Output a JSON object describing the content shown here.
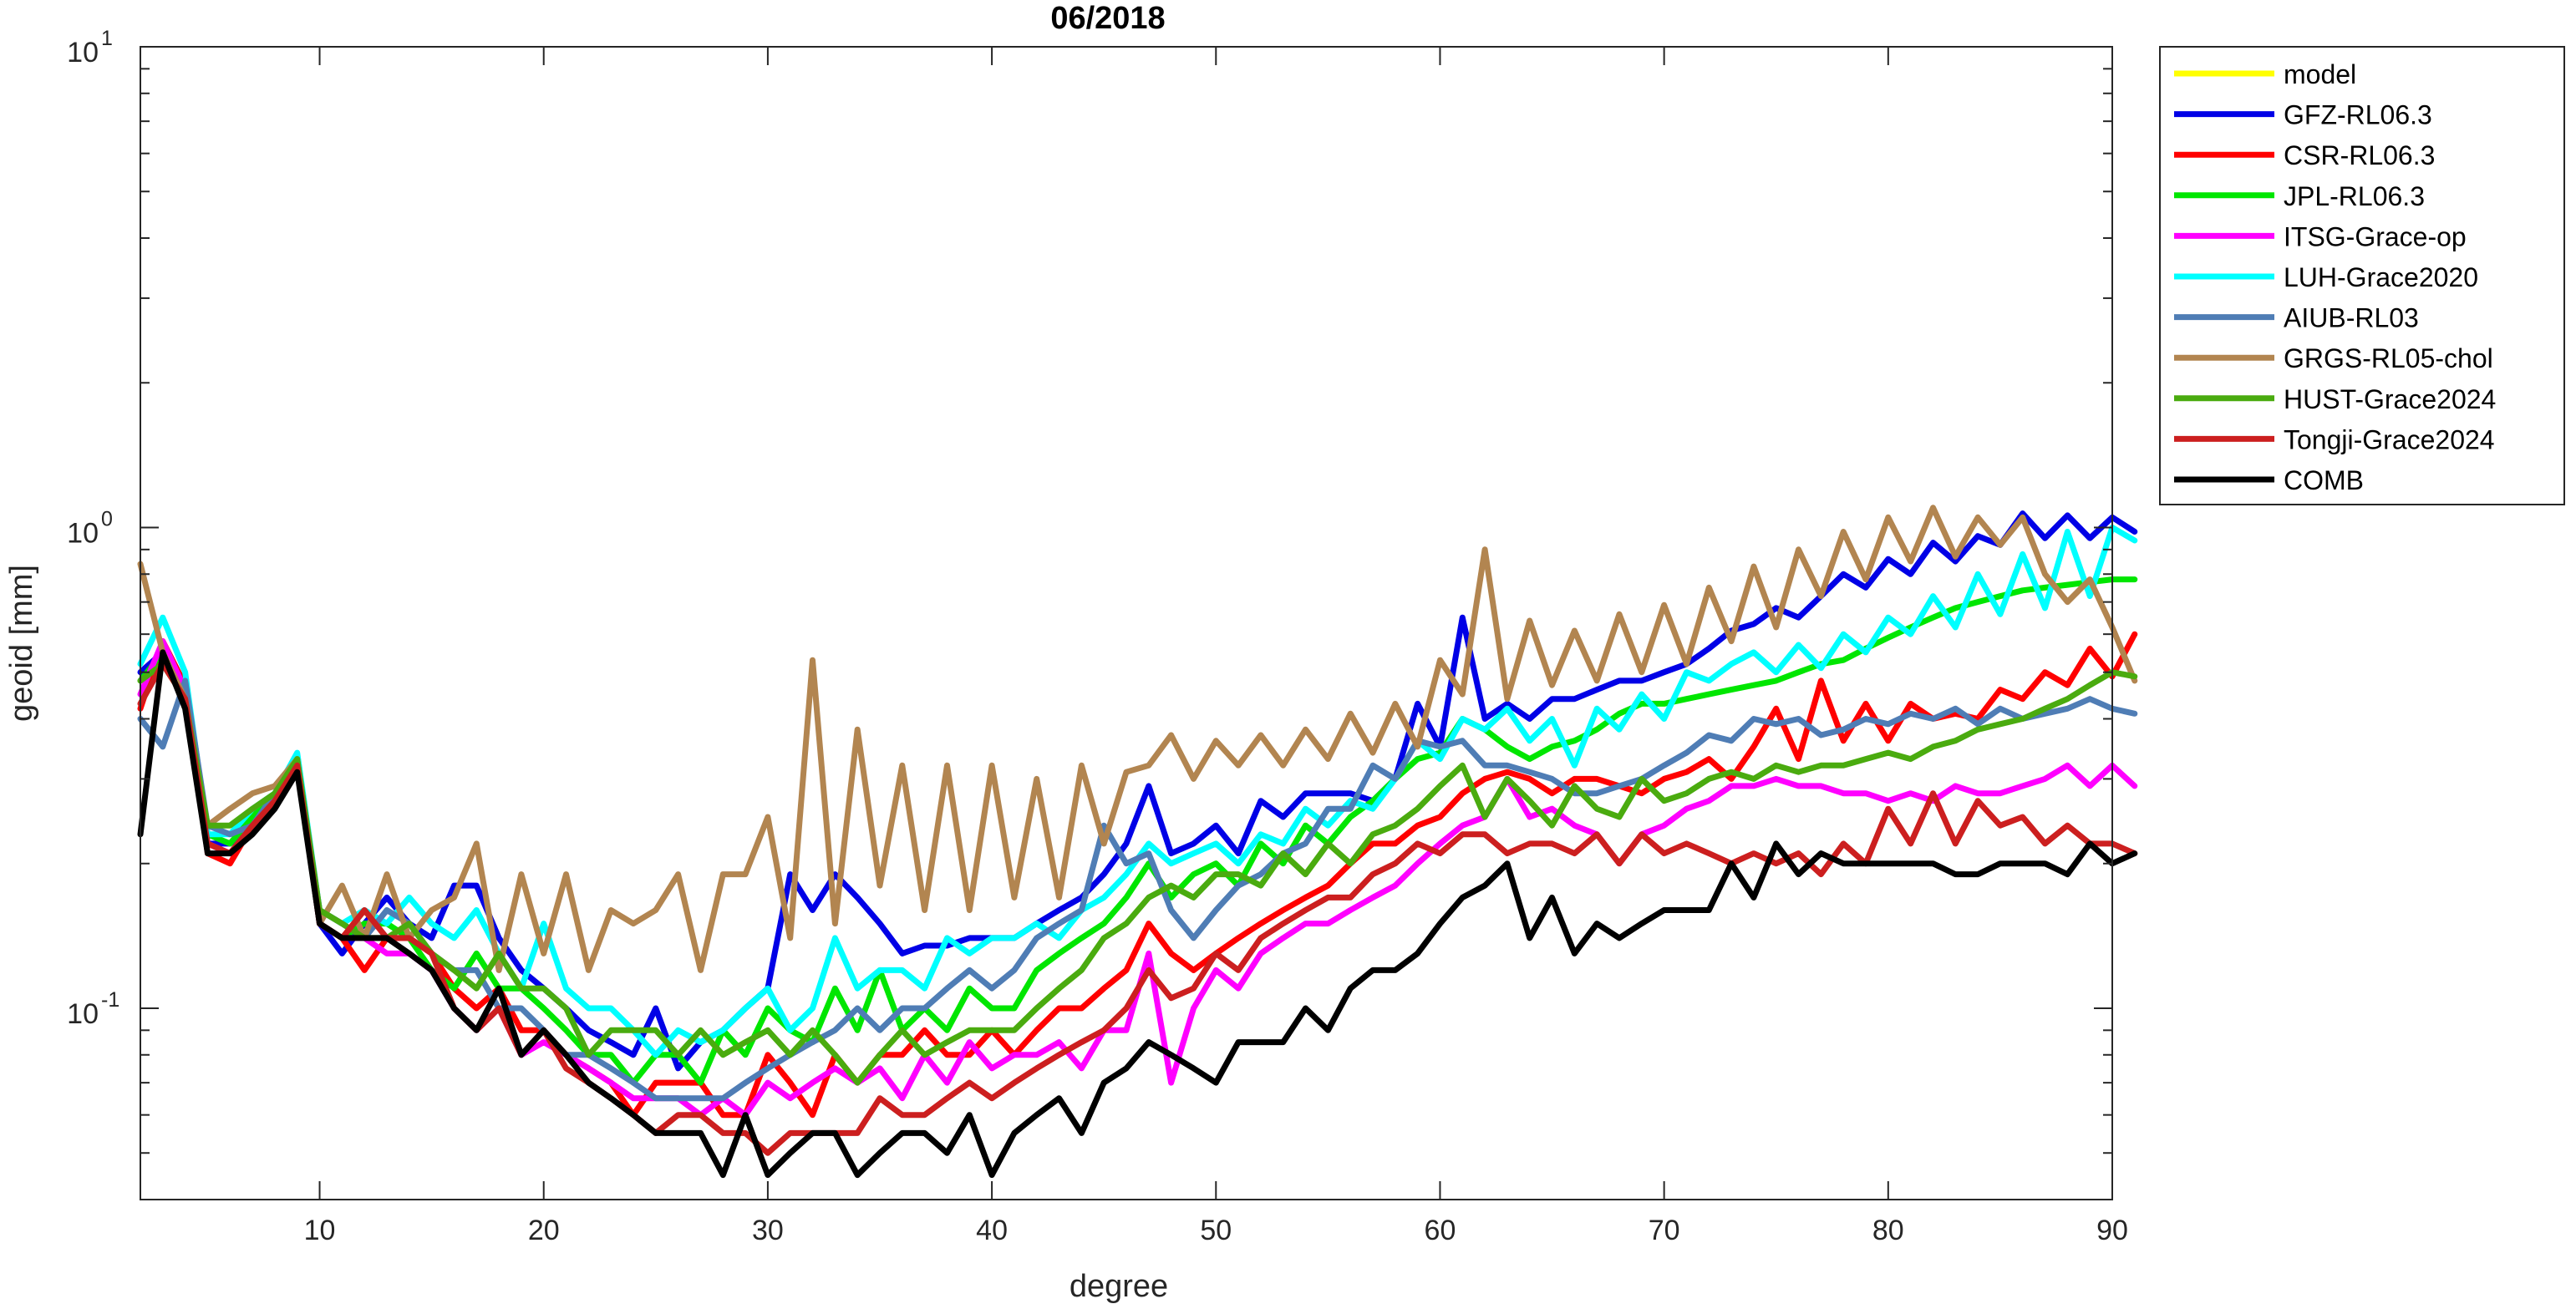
{
  "chart_data": {
    "type": "line",
    "title": "06/2018",
    "xlabel": "degree",
    "ylabel": "geoid [mm]",
    "xlim": [
      2,
      90
    ],
    "ylim": [
      0.04,
      10
    ],
    "yscale": "log",
    "grid": false,
    "legend_position": "outside-right-top",
    "xticks": [
      10,
      20,
      30,
      40,
      50,
      60,
      70,
      80,
      90
    ],
    "xtick_labels": [
      "10",
      "20",
      "30",
      "40",
      "50",
      "60",
      "70",
      "80",
      "90"
    ],
    "yticks": [
      {
        "value": 0.1,
        "base": "10",
        "exp": "-1"
      },
      {
        "value": 1,
        "base": "10",
        "exp": "0"
      },
      {
        "value": 10,
        "base": "10",
        "exp": "1"
      }
    ],
    "x_start": 2,
    "series": [
      {
        "name": "model",
        "color": "#ffff00",
        "values": []
      },
      {
        "name": "GFZ-RL06.3",
        "color": "#0000e6",
        "values": [
          0.5,
          0.55,
          0.45,
          0.22,
          0.22,
          0.24,
          0.27,
          0.32,
          0.15,
          0.13,
          0.15,
          0.17,
          0.15,
          0.14,
          0.18,
          0.18,
          0.14,
          0.12,
          0.11,
          0.1,
          0.09,
          0.085,
          0.08,
          0.1,
          0.075,
          0.085,
          0.09,
          0.1,
          0.11,
          0.19,
          0.16,
          0.19,
          0.17,
          0.15,
          0.13,
          0.135,
          0.135,
          0.14,
          0.14,
          0.14,
          0.15,
          0.16,
          0.17,
          0.19,
          0.22,
          0.29,
          0.21,
          0.22,
          0.24,
          0.21,
          0.27,
          0.25,
          0.28,
          0.28,
          0.28,
          0.27,
          0.3,
          0.43,
          0.35,
          0.65,
          0.4,
          0.43,
          0.4,
          0.44,
          0.44,
          0.46,
          0.48,
          0.48,
          0.5,
          0.52,
          0.56,
          0.61,
          0.63,
          0.68,
          0.65,
          0.72,
          0.8,
          0.75,
          0.86,
          0.8,
          0.93,
          0.85,
          0.96,
          0.92,
          1.07,
          0.95,
          1.06,
          0.95,
          1.05,
          0.98
        ]
      },
      {
        "name": "CSR-RL06.3",
        "color": "#ff0000",
        "values": [
          0.42,
          0.58,
          0.47,
          0.21,
          0.2,
          0.24,
          0.27,
          0.32,
          0.15,
          0.14,
          0.12,
          0.14,
          0.14,
          0.13,
          0.11,
          0.1,
          0.11,
          0.09,
          0.09,
          0.08,
          0.075,
          0.07,
          0.06,
          0.07,
          0.07,
          0.07,
          0.06,
          0.06,
          0.08,
          0.07,
          0.06,
          0.08,
          0.07,
          0.08,
          0.08,
          0.09,
          0.08,
          0.08,
          0.09,
          0.08,
          0.09,
          0.1,
          0.1,
          0.11,
          0.12,
          0.15,
          0.13,
          0.12,
          0.13,
          0.14,
          0.15,
          0.16,
          0.17,
          0.18,
          0.2,
          0.22,
          0.22,
          0.24,
          0.25,
          0.28,
          0.3,
          0.31,
          0.3,
          0.28,
          0.3,
          0.3,
          0.29,
          0.28,
          0.3,
          0.31,
          0.33,
          0.3,
          0.35,
          0.42,
          0.33,
          0.48,
          0.36,
          0.43,
          0.36,
          0.43,
          0.4,
          0.41,
          0.4,
          0.46,
          0.44,
          0.5,
          0.47,
          0.56,
          0.49,
          0.6
        ]
      },
      {
        "name": "JPL-RL06.3",
        "color": "#00e600",
        "values": [
          0.48,
          0.55,
          0.45,
          0.23,
          0.22,
          0.25,
          0.28,
          0.32,
          0.15,
          0.14,
          0.15,
          0.15,
          0.14,
          0.12,
          0.11,
          0.13,
          0.11,
          0.11,
          0.1,
          0.09,
          0.08,
          0.08,
          0.07,
          0.08,
          0.08,
          0.07,
          0.09,
          0.08,
          0.1,
          0.09,
          0.085,
          0.11,
          0.09,
          0.12,
          0.09,
          0.1,
          0.09,
          0.11,
          0.1,
          0.1,
          0.12,
          0.13,
          0.14,
          0.15,
          0.17,
          0.2,
          0.17,
          0.19,
          0.2,
          0.18,
          0.22,
          0.2,
          0.24,
          0.22,
          0.25,
          0.27,
          0.3,
          0.33,
          0.34,
          0.4,
          0.38,
          0.35,
          0.33,
          0.35,
          0.36,
          0.38,
          0.41,
          0.43,
          0.43,
          0.44,
          0.45,
          0.46,
          0.47,
          0.48,
          0.5,
          0.52,
          0.53,
          0.56,
          0.59,
          0.62,
          0.65,
          0.68,
          0.7,
          0.72,
          0.74,
          0.75,
          0.76,
          0.77,
          0.78,
          0.78
        ]
      },
      {
        "name": "ITSG-Grace-op",
        "color": "#ff00ff",
        "values": [
          0.45,
          0.58,
          0.46,
          0.22,
          0.21,
          0.24,
          0.27,
          0.32,
          0.15,
          0.14,
          0.14,
          0.13,
          0.13,
          0.12,
          0.1,
          0.09,
          0.1,
          0.08,
          0.085,
          0.08,
          0.075,
          0.07,
          0.065,
          0.065,
          0.065,
          0.06,
          0.065,
          0.06,
          0.07,
          0.065,
          0.07,
          0.075,
          0.07,
          0.075,
          0.065,
          0.08,
          0.07,
          0.085,
          0.075,
          0.08,
          0.08,
          0.085,
          0.075,
          0.09,
          0.09,
          0.13,
          0.07,
          0.1,
          0.12,
          0.11,
          0.13,
          0.14,
          0.15,
          0.15,
          0.16,
          0.17,
          0.18,
          0.2,
          0.22,
          0.24,
          0.25,
          0.3,
          0.25,
          0.26,
          0.24,
          0.23,
          0.2,
          0.23,
          0.24,
          0.26,
          0.27,
          0.29,
          0.29,
          0.3,
          0.29,
          0.29,
          0.28,
          0.28,
          0.27,
          0.28,
          0.27,
          0.29,
          0.28,
          0.28,
          0.29,
          0.3,
          0.32,
          0.29,
          0.32,
          0.29
        ]
      },
      {
        "name": "LUH-Grace2020",
        "color": "#00ffff",
        "values": [
          0.52,
          0.65,
          0.5,
          0.23,
          0.23,
          0.26,
          0.28,
          0.34,
          0.16,
          0.15,
          0.16,
          0.15,
          0.17,
          0.15,
          0.14,
          0.16,
          0.13,
          0.11,
          0.15,
          0.11,
          0.1,
          0.1,
          0.09,
          0.08,
          0.09,
          0.085,
          0.09,
          0.1,
          0.11,
          0.09,
          0.1,
          0.14,
          0.11,
          0.12,
          0.12,
          0.11,
          0.14,
          0.13,
          0.14,
          0.14,
          0.15,
          0.14,
          0.16,
          0.17,
          0.19,
          0.22,
          0.2,
          0.21,
          0.22,
          0.2,
          0.23,
          0.22,
          0.26,
          0.24,
          0.27,
          0.26,
          0.3,
          0.36,
          0.33,
          0.4,
          0.38,
          0.42,
          0.36,
          0.4,
          0.32,
          0.42,
          0.38,
          0.45,
          0.4,
          0.5,
          0.48,
          0.52,
          0.55,
          0.5,
          0.57,
          0.51,
          0.6,
          0.55,
          0.65,
          0.6,
          0.72,
          0.62,
          0.8,
          0.66,
          0.88,
          0.68,
          0.98,
          0.72,
          1.0,
          0.94
        ]
      },
      {
        "name": "AIUB-RL03",
        "color": "#4f7db5",
        "values": [
          0.4,
          0.35,
          0.48,
          0.24,
          0.23,
          0.24,
          0.28,
          0.33,
          0.16,
          0.15,
          0.14,
          0.16,
          0.15,
          0.13,
          0.12,
          0.12,
          0.1,
          0.1,
          0.09,
          0.08,
          0.08,
          0.075,
          0.07,
          0.065,
          0.065,
          0.065,
          0.065,
          0.07,
          0.075,
          0.08,
          0.085,
          0.09,
          0.1,
          0.09,
          0.1,
          0.1,
          0.11,
          0.12,
          0.11,
          0.12,
          0.14,
          0.15,
          0.16,
          0.24,
          0.2,
          0.21,
          0.16,
          0.14,
          0.16,
          0.18,
          0.19,
          0.21,
          0.22,
          0.26,
          0.26,
          0.32,
          0.3,
          0.36,
          0.35,
          0.36,
          0.32,
          0.32,
          0.31,
          0.3,
          0.28,
          0.28,
          0.29,
          0.3,
          0.32,
          0.34,
          0.37,
          0.36,
          0.4,
          0.39,
          0.4,
          0.37,
          0.38,
          0.4,
          0.39,
          0.41,
          0.4,
          0.42,
          0.39,
          0.42,
          0.4,
          0.41,
          0.42,
          0.44,
          0.42,
          0.41
        ]
      },
      {
        "name": "GRGS-RL05-chol",
        "color": "#b28550",
        "values": [
          0.84,
          0.55,
          0.44,
          0.24,
          0.26,
          0.28,
          0.29,
          0.33,
          0.15,
          0.18,
          0.14,
          0.19,
          0.14,
          0.16,
          0.17,
          0.22,
          0.12,
          0.19,
          0.13,
          0.19,
          0.12,
          0.16,
          0.15,
          0.16,
          0.19,
          0.12,
          0.19,
          0.19,
          0.25,
          0.14,
          0.53,
          0.15,
          0.38,
          0.18,
          0.32,
          0.16,
          0.32,
          0.16,
          0.32,
          0.17,
          0.3,
          0.17,
          0.32,
          0.22,
          0.31,
          0.32,
          0.37,
          0.3,
          0.36,
          0.32,
          0.37,
          0.32,
          0.38,
          0.33,
          0.41,
          0.34,
          0.43,
          0.35,
          0.53,
          0.45,
          0.9,
          0.44,
          0.64,
          0.47,
          0.61,
          0.48,
          0.66,
          0.5,
          0.69,
          0.52,
          0.75,
          0.58,
          0.83,
          0.62,
          0.9,
          0.72,
          0.98,
          0.78,
          1.05,
          0.85,
          1.1,
          0.87,
          1.05,
          0.92,
          1.05,
          0.8,
          0.7,
          0.78,
          0.62,
          0.48
        ]
      },
      {
        "name": "HUST-Grace2024",
        "color": "#4aab0f",
        "values": [
          0.48,
          0.52,
          0.44,
          0.24,
          0.24,
          0.26,
          0.28,
          0.33,
          0.16,
          0.15,
          0.14,
          0.14,
          0.15,
          0.13,
          0.12,
          0.11,
          0.13,
          0.11,
          0.11,
          0.1,
          0.08,
          0.09,
          0.09,
          0.09,
          0.08,
          0.09,
          0.08,
          0.085,
          0.09,
          0.08,
          0.09,
          0.08,
          0.07,
          0.08,
          0.09,
          0.08,
          0.085,
          0.09,
          0.09,
          0.09,
          0.1,
          0.11,
          0.12,
          0.14,
          0.15,
          0.17,
          0.18,
          0.17,
          0.19,
          0.19,
          0.18,
          0.21,
          0.19,
          0.22,
          0.2,
          0.23,
          0.24,
          0.26,
          0.29,
          0.32,
          0.25,
          0.3,
          0.27,
          0.24,
          0.29,
          0.26,
          0.25,
          0.3,
          0.27,
          0.28,
          0.3,
          0.31,
          0.3,
          0.32,
          0.31,
          0.32,
          0.32,
          0.33,
          0.34,
          0.33,
          0.35,
          0.36,
          0.38,
          0.39,
          0.4,
          0.42,
          0.44,
          0.47,
          0.5,
          0.49
        ]
      },
      {
        "name": "Tongji-Grace2024",
        "color": "#cc1f1f",
        "values": [
          0.43,
          0.52,
          0.44,
          0.22,
          0.21,
          0.24,
          0.27,
          0.32,
          0.15,
          0.14,
          0.16,
          0.14,
          0.14,
          0.13,
          0.1,
          0.09,
          0.1,
          0.08,
          0.09,
          0.075,
          0.07,
          0.065,
          0.06,
          0.055,
          0.06,
          0.06,
          0.055,
          0.055,
          0.05,
          0.055,
          0.055,
          0.055,
          0.055,
          0.065,
          0.06,
          0.06,
          0.065,
          0.07,
          0.065,
          0.07,
          0.075,
          0.08,
          0.085,
          0.09,
          0.1,
          0.12,
          0.105,
          0.11,
          0.13,
          0.12,
          0.14,
          0.15,
          0.16,
          0.17,
          0.17,
          0.19,
          0.2,
          0.22,
          0.21,
          0.23,
          0.23,
          0.21,
          0.22,
          0.22,
          0.21,
          0.23,
          0.2,
          0.23,
          0.21,
          0.22,
          0.21,
          0.2,
          0.21,
          0.2,
          0.21,
          0.19,
          0.22,
          0.2,
          0.26,
          0.22,
          0.28,
          0.22,
          0.27,
          0.24,
          0.25,
          0.22,
          0.24,
          0.22,
          0.22,
          0.21
        ]
      },
      {
        "name": "COMB",
        "color": "#000000",
        "values": [
          0.23,
          0.55,
          0.42,
          0.21,
          0.21,
          0.23,
          0.26,
          0.31,
          0.15,
          0.14,
          0.14,
          0.14,
          0.13,
          0.12,
          0.1,
          0.09,
          0.11,
          0.08,
          0.09,
          0.08,
          0.07,
          0.065,
          0.06,
          0.055,
          0.055,
          0.055,
          0.045,
          0.06,
          0.045,
          0.05,
          0.055,
          0.055,
          0.045,
          0.05,
          0.055,
          0.055,
          0.05,
          0.06,
          0.045,
          0.055,
          0.06,
          0.065,
          0.055,
          0.07,
          0.075,
          0.085,
          0.08,
          0.075,
          0.07,
          0.085,
          0.085,
          0.085,
          0.1,
          0.09,
          0.11,
          0.12,
          0.12,
          0.13,
          0.15,
          0.17,
          0.18,
          0.2,
          0.14,
          0.17,
          0.13,
          0.15,
          0.14,
          0.15,
          0.16,
          0.16,
          0.16,
          0.2,
          0.17,
          0.22,
          0.19,
          0.21,
          0.2,
          0.2,
          0.2,
          0.2,
          0.2,
          0.19,
          0.19,
          0.2,
          0.2,
          0.2,
          0.19,
          0.22,
          0.2,
          0.21
        ]
      }
    ]
  }
}
